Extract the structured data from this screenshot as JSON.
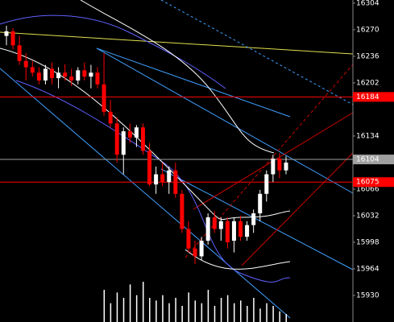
{
  "chart_data": {
    "type": "candlestick",
    "ylim": [
      15896,
      16308
    ],
    "yticks": [
      16304,
      16270,
      16236,
      16202,
      16134,
      16066,
      16032,
      15998,
      15964,
      15930
    ],
    "levels": [
      {
        "value": 16184,
        "color": "#ff0000"
      },
      {
        "value": 16104,
        "color": "#a0a0a0"
      },
      {
        "value": 16075,
        "color": "#ff0000"
      }
    ],
    "up_color": "#ffffff",
    "down_color": "#ff0000",
    "candles": [
      [
        16262,
        16275,
        16250,
        16268
      ],
      [
        16268,
        16272,
        16245,
        16250
      ],
      [
        16250,
        16262,
        16225,
        16230
      ],
      [
        16230,
        16240,
        16205,
        16222
      ],
      [
        16222,
        16230,
        16210,
        16215
      ],
      [
        16215,
        16222,
        16200,
        16205
      ],
      [
        16205,
        16225,
        16200,
        16220
      ],
      [
        16220,
        16228,
        16200,
        16208
      ],
      [
        16208,
        16222,
        16195,
        16215
      ],
      [
        16215,
        16226,
        16205,
        16210
      ],
      [
        16210,
        16220,
        16198,
        16205
      ],
      [
        16205,
        16222,
        16200,
        16218
      ],
      [
        16218,
        16228,
        16205,
        16210
      ],
      [
        16210,
        16225,
        16195,
        16215
      ],
      [
        16215,
        16222,
        16195,
        16200
      ],
      [
        16200,
        16240,
        16160,
        16165
      ],
      [
        16165,
        16180,
        16145,
        16150
      ],
      [
        16150,
        16158,
        16100,
        16110
      ],
      [
        16110,
        16145,
        16085,
        16140
      ],
      [
        16140,
        16150,
        16125,
        16132
      ],
      [
        16132,
        16148,
        16120,
        16145
      ],
      [
        16145,
        16150,
        16110,
        16115
      ],
      [
        16115,
        16125,
        16070,
        16072
      ],
      [
        16072,
        16095,
        16060,
        16085
      ],
      [
        16085,
        16100,
        16070,
        16075
      ],
      [
        16075,
        16095,
        16060,
        16090
      ],
      [
        16090,
        16100,
        16055,
        16060
      ],
      [
        16060,
        16065,
        16010,
        16015
      ],
      [
        16015,
        16025,
        15985,
        15990
      ],
      [
        15990,
        16000,
        15970,
        15980
      ],
      [
        15980,
        16005,
        15975,
        16000
      ],
      [
        16000,
        16035,
        15995,
        16030
      ],
      [
        16030,
        16038,
        16010,
        16015
      ],
      [
        16015,
        16030,
        16000,
        16025
      ],
      [
        16025,
        16030,
        15990,
        15998
      ],
      [
        16000,
        16030,
        15985,
        16025
      ],
      [
        16025,
        16032,
        16000,
        16005
      ],
      [
        16005,
        16025,
        16000,
        16020
      ],
      [
        16020,
        16040,
        16010,
        16035
      ],
      [
        16035,
        16065,
        16025,
        16060
      ],
      [
        16060,
        16090,
        16050,
        16085
      ],
      [
        16085,
        16110,
        16075,
        16105
      ],
      [
        16105,
        16112,
        16080,
        16090
      ],
      [
        16090,
        16108,
        16085,
        16100
      ]
    ],
    "volume": [
      null,
      null,
      null,
      null,
      null,
      null,
      null,
      null,
      null,
      null,
      null,
      null,
      null,
      null,
      null,
      60,
      35,
      55,
      45,
      70,
      50,
      75,
      45,
      40,
      50,
      35,
      45,
      30,
      55,
      40,
      35,
      60,
      30,
      45,
      50,
      35,
      40,
      30,
      45,
      25,
      35,
      30,
      20,
      15
    ]
  }
}
